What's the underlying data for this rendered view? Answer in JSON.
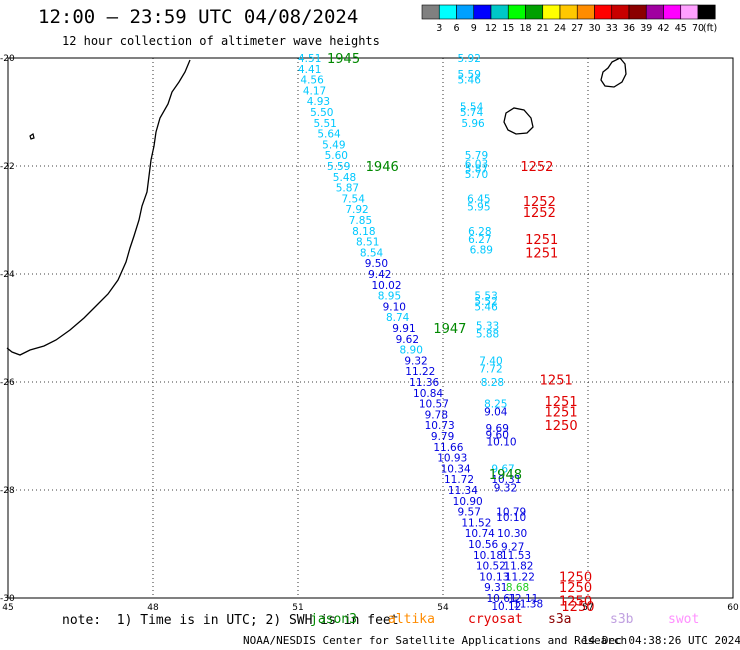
{
  "title": "12:00 — 23:59 UTC 04/08/2024",
  "subtitle": "12 hour collection of altimeter wave heights",
  "color_scale": {
    "colors": [
      "#808080",
      "#00ffff",
      "#00a0ff",
      "#0000ff",
      "#00c8c8",
      "#00ff00",
      "#00a000",
      "#ffff00",
      "#ffc800",
      "#ff8c00",
      "#ff0000",
      "#c80000",
      "#8b0000",
      "#a000a0",
      "#ff00ff",
      "#ffa0ff",
      "#000000"
    ],
    "labels": [
      "3",
      "6",
      "9",
      "12",
      "15",
      "18",
      "21",
      "24",
      "27",
      "30",
      "33",
      "36",
      "39",
      "42",
      "45",
      "70"
    ],
    "unit": "(ft)"
  },
  "axes": {
    "lon_ticks": [
      "45",
      "48",
      "51",
      "54",
      "57",
      "60"
    ],
    "lat_ticks": [
      "-20",
      "-22",
      "-24",
      "-26",
      "-28",
      "-30"
    ]
  },
  "track_colors": {
    "cyan": "#00c8ff",
    "blue": "#0000e0",
    "green": "#008800",
    "red": "#e00000",
    "lime": "#22cc22"
  },
  "wave_heights": [
    {
      "text": "4.51",
      "lon": 51.0,
      "lat": -20.0,
      "color": "cyan"
    },
    {
      "text": "4.41",
      "lon": 51.0,
      "lat": -20.2,
      "color": "cyan"
    },
    {
      "text": "4.56",
      "lon": 51.05,
      "lat": -20.4,
      "color": "cyan"
    },
    {
      "text": "4.17",
      "lon": 51.1,
      "lat": -20.6,
      "color": "cyan"
    },
    {
      "text": "4.93",
      "lon": 51.18,
      "lat": -20.8,
      "color": "cyan"
    },
    {
      "text": "5.50",
      "lon": 51.25,
      "lat": -21.0,
      "color": "cyan"
    },
    {
      "text": "5.51",
      "lon": 51.32,
      "lat": -21.2,
      "color": "cyan"
    },
    {
      "text": "5.64",
      "lon": 51.4,
      "lat": -21.4,
      "color": "cyan"
    },
    {
      "text": "5.49",
      "lon": 51.5,
      "lat": -21.6,
      "color": "cyan"
    },
    {
      "text": "5.60",
      "lon": 51.55,
      "lat": -21.8,
      "color": "cyan"
    },
    {
      "text": "5.59",
      "lon": 51.6,
      "lat": -22.0,
      "color": "cyan"
    },
    {
      "text": "5.48",
      "lon": 51.72,
      "lat": -22.2,
      "color": "cyan"
    },
    {
      "text": "5.87",
      "lon": 51.78,
      "lat": -22.4,
      "color": "cyan"
    },
    {
      "text": "7.54",
      "lon": 51.9,
      "lat": -22.6,
      "color": "cyan"
    },
    {
      "text": "7.92",
      "lon": 51.98,
      "lat": -22.8,
      "color": "cyan"
    },
    {
      "text": "7.85",
      "lon": 52.05,
      "lat": -23.0,
      "color": "cyan"
    },
    {
      "text": "8.18",
      "lon": 52.12,
      "lat": -23.2,
      "color": "cyan"
    },
    {
      "text": "8.51",
      "lon": 52.2,
      "lat": -23.4,
      "color": "cyan"
    },
    {
      "text": "8.54",
      "lon": 52.28,
      "lat": -23.6,
      "color": "cyan"
    },
    {
      "text": "9.50",
      "lon": 52.38,
      "lat": -23.8,
      "color": "blue"
    },
    {
      "text": "9.42",
      "lon": 52.45,
      "lat": -24.0,
      "color": "blue"
    },
    {
      "text": "10.02",
      "lon": 52.52,
      "lat": -24.2,
      "color": "blue"
    },
    {
      "text": "8.95",
      "lon": 52.65,
      "lat": -24.4,
      "color": "cyan"
    },
    {
      "text": "9.10",
      "lon": 52.75,
      "lat": -24.6,
      "color": "blue"
    },
    {
      "text": "8.74",
      "lon": 52.82,
      "lat": -24.8,
      "color": "cyan"
    },
    {
      "text": "9.91",
      "lon": 52.95,
      "lat": -25.0,
      "color": "blue"
    },
    {
      "text": "9.62",
      "lon": 53.02,
      "lat": -25.2,
      "color": "blue"
    },
    {
      "text": "8.90",
      "lon": 53.1,
      "lat": -25.4,
      "color": "cyan"
    },
    {
      "text": "9.32",
      "lon": 53.2,
      "lat": -25.6,
      "color": "blue"
    },
    {
      "text": "11.22",
      "lon": 53.22,
      "lat": -25.8,
      "color": "blue"
    },
    {
      "text": "11.36",
      "lon": 53.3,
      "lat": -26.0,
      "color": "blue"
    },
    {
      "text": "10.84",
      "lon": 53.38,
      "lat": -26.2,
      "color": "blue"
    },
    {
      "text": "10.57",
      "lon": 53.5,
      "lat": -26.4,
      "color": "blue"
    },
    {
      "text": "9.78",
      "lon": 53.62,
      "lat": -26.6,
      "color": "blue"
    },
    {
      "text": "10.73",
      "lon": 53.62,
      "lat": -26.8,
      "color": "blue"
    },
    {
      "text": "9.79",
      "lon": 53.75,
      "lat": -27.0,
      "color": "blue"
    },
    {
      "text": "11.66",
      "lon": 53.8,
      "lat": -27.2,
      "color": "blue"
    },
    {
      "text": "10.93",
      "lon": 53.88,
      "lat": -27.4,
      "color": "blue"
    },
    {
      "text": "10.34",
      "lon": 53.95,
      "lat": -27.6,
      "color": "blue"
    },
    {
      "text": "11.72",
      "lon": 54.02,
      "lat": -27.8,
      "color": "blue"
    },
    {
      "text": "11.34",
      "lon": 54.1,
      "lat": -28.0,
      "color": "blue"
    },
    {
      "text": "10.90",
      "lon": 54.2,
      "lat": -28.2,
      "color": "blue"
    },
    {
      "text": "9.57",
      "lon": 54.3,
      "lat": -28.4,
      "color": "blue"
    },
    {
      "text": "11.52",
      "lon": 54.38,
      "lat": -28.6,
      "color": "blue"
    },
    {
      "text": "10.74",
      "lon": 54.45,
      "lat": -28.8,
      "color": "blue"
    },
    {
      "text": "10.56",
      "lon": 54.52,
      "lat": -29.0,
      "color": "blue"
    },
    {
      "text": "10.18",
      "lon": 54.62,
      "lat": -29.2,
      "color": "blue"
    },
    {
      "text": "10.52",
      "lon": 54.68,
      "lat": -29.4,
      "color": "blue"
    },
    {
      "text": "10.13",
      "lon": 54.75,
      "lat": -29.6,
      "color": "blue"
    },
    {
      "text": "9.31",
      "lon": 54.85,
      "lat": -29.8,
      "color": "blue"
    },
    {
      "text": "10.61",
      "lon": 54.9,
      "lat": -30.0,
      "color": "blue"
    },
    {
      "text": "10.12",
      "lon": 55.0,
      "lat": -30.15,
      "color": "blue"
    },
    {
      "text": "5.92",
      "lon": 54.3,
      "lat": -20.0,
      "color": "cyan"
    },
    {
      "text": "5.59",
      "lon": 54.3,
      "lat": -20.3,
      "color": "cyan"
    },
    {
      "text": "5.46",
      "lon": 54.3,
      "lat": -20.4,
      "color": "cyan"
    },
    {
      "text": "5.54",
      "lon": 54.35,
      "lat": -20.9,
      "color": "cyan"
    },
    {
      "text": "5.74",
      "lon": 54.35,
      "lat": -21.0,
      "color": "cyan"
    },
    {
      "text": "5.96",
      "lon": 54.38,
      "lat": -21.2,
      "color": "cyan"
    },
    {
      "text": "5.79",
      "lon": 54.45,
      "lat": -21.8,
      "color": "cyan"
    },
    {
      "text": "6.03",
      "lon": 54.45,
      "lat": -21.95,
      "color": "cyan"
    },
    {
      "text": "5.87",
      "lon": 54.45,
      "lat": -22.05,
      "color": "cyan"
    },
    {
      "text": "5.70",
      "lon": 54.45,
      "lat": -22.15,
      "color": "cyan"
    },
    {
      "text": "6.45",
      "lon": 54.5,
      "lat": -22.6,
      "color": "cyan"
    },
    {
      "text": "5.95",
      "lon": 54.5,
      "lat": -22.75,
      "color": "cyan"
    },
    {
      "text": "6.28",
      "lon": 54.52,
      "lat": -23.2,
      "color": "cyan"
    },
    {
      "text": "6.27",
      "lon": 54.52,
      "lat": -23.35,
      "color": "cyan"
    },
    {
      "text": "6.89",
      "lon": 54.55,
      "lat": -23.55,
      "color": "cyan"
    },
    {
      "text": "5.53",
      "lon": 54.65,
      "lat": -24.4,
      "color": "cyan"
    },
    {
      "text": "5.52",
      "lon": 54.65,
      "lat": -24.5,
      "color": "cyan"
    },
    {
      "text": "5.46",
      "lon": 54.65,
      "lat": -24.6,
      "color": "cyan"
    },
    {
      "text": "5.33",
      "lon": 54.68,
      "lat": -24.95,
      "color": "cyan"
    },
    {
      "text": "5.88",
      "lon": 54.68,
      "lat": -25.1,
      "color": "cyan"
    },
    {
      "text": "7.40",
      "lon": 54.75,
      "lat": -25.6,
      "color": "cyan"
    },
    {
      "text": "7.72",
      "lon": 54.75,
      "lat": -25.75,
      "color": "cyan"
    },
    {
      "text": "8.28",
      "lon": 54.78,
      "lat": -26.0,
      "color": "cyan"
    },
    {
      "text": "8.25",
      "lon": 54.85,
      "lat": -26.4,
      "color": "cyan"
    },
    {
      "text": "9.04",
      "lon": 54.85,
      "lat": -26.55,
      "color": "blue"
    },
    {
      "text": "9.69",
      "lon": 54.88,
      "lat": -26.85,
      "color": "blue"
    },
    {
      "text": "9.60",
      "lon": 54.88,
      "lat": -26.97,
      "color": "blue"
    },
    {
      "text": "10.10",
      "lon": 54.9,
      "lat": -27.1,
      "color": "blue"
    },
    {
      "text": "9.67",
      "lon": 55.0,
      "lat": -27.6,
      "color": "cyan"
    },
    {
      "text": "10.31",
      "lon": 55.0,
      "lat": -27.8,
      "color": "blue"
    },
    {
      "text": "9.32",
      "lon": 55.05,
      "lat": -27.95,
      "color": "blue"
    },
    {
      "text": "10.79",
      "lon": 55.1,
      "lat": -28.4,
      "color": "blue"
    },
    {
      "text": "10.10",
      "lon": 55.1,
      "lat": -28.5,
      "color": "blue"
    },
    {
      "text": "10.30",
      "lon": 55.12,
      "lat": -28.8,
      "color": "blue"
    },
    {
      "text": "9.27",
      "lon": 55.2,
      "lat": -29.05,
      "color": "blue"
    },
    {
      "text": "11.53",
      "lon": 55.2,
      "lat": -29.2,
      "color": "blue"
    },
    {
      "text": "11.82",
      "lon": 55.25,
      "lat": -29.4,
      "color": "blue"
    },
    {
      "text": "11.22",
      "lon": 55.28,
      "lat": -29.6,
      "color": "blue"
    },
    {
      "text": "8.68",
      "lon": 55.3,
      "lat": -29.8,
      "color": "lime"
    },
    {
      "text": "12.11",
      "lon": 55.35,
      "lat": -30.0,
      "color": "blue"
    },
    {
      "text": "11.38",
      "lon": 55.45,
      "lat": -30.1,
      "color": "blue"
    }
  ],
  "pass_times": [
    {
      "text": "1945",
      "lon": 51.6,
      "lat": -20.0,
      "color": "green"
    },
    {
      "text": "1946",
      "lon": 52.4,
      "lat": -22.0,
      "color": "green"
    },
    {
      "text": "1947",
      "lon": 53.8,
      "lat": -25.0,
      "color": "green"
    },
    {
      "text": "1948",
      "lon": 54.95,
      "lat": -27.7,
      "color": "green"
    },
    {
      "text": "1252",
      "lon": 55.6,
      "lat": -22.0,
      "color": "red"
    },
    {
      "text": "1252",
      "lon": 55.65,
      "lat": -22.65,
      "color": "red"
    },
    {
      "text": "1252",
      "lon": 55.65,
      "lat": -22.85,
      "color": "red"
    },
    {
      "text": "1251",
      "lon": 55.7,
      "lat": -23.35,
      "color": "red"
    },
    {
      "text": "1251",
      "lon": 55.7,
      "lat": -23.6,
      "color": "red"
    },
    {
      "text": "1251",
      "lon": 56.0,
      "lat": -25.95,
      "color": "red"
    },
    {
      "text": "1251",
      "lon": 56.1,
      "lat": -26.35,
      "color": "red"
    },
    {
      "text": "1251",
      "lon": 56.1,
      "lat": -26.55,
      "color": "red"
    },
    {
      "text": "1250",
      "lon": 56.1,
      "lat": -26.8,
      "color": "red"
    },
    {
      "text": "1250",
      "lon": 56.4,
      "lat": -29.6,
      "color": "red"
    },
    {
      "text": "1250",
      "lon": 56.4,
      "lat": -29.8,
      "color": "red"
    },
    {
      "text": "1250",
      "lon": 56.4,
      "lat": -30.05,
      "color": "red"
    },
    {
      "text": "1250",
      "lon": 56.45,
      "lat": -30.15,
      "color": "red"
    }
  ],
  "note": "note:  1) Time is in UTC; 2) SWH is in feet",
  "satellites": [
    {
      "name": "jason3",
      "color": "#008800"
    },
    {
      "name": "altika",
      "color": "#ff8c00"
    },
    {
      "name": "cryosat",
      "color": "#e00000"
    },
    {
      "name": "s3a",
      "color": "#8b0000"
    },
    {
      "name": "s3b",
      "color": "#c0a0e0"
    },
    {
      "name": "swot",
      "color": "#ff90ff"
    }
  ],
  "footer": "NOAA/NESDIS Center for Satellite Applications and Research",
  "footer_time": "14 Dec 04:38:26 UTC 2024"
}
